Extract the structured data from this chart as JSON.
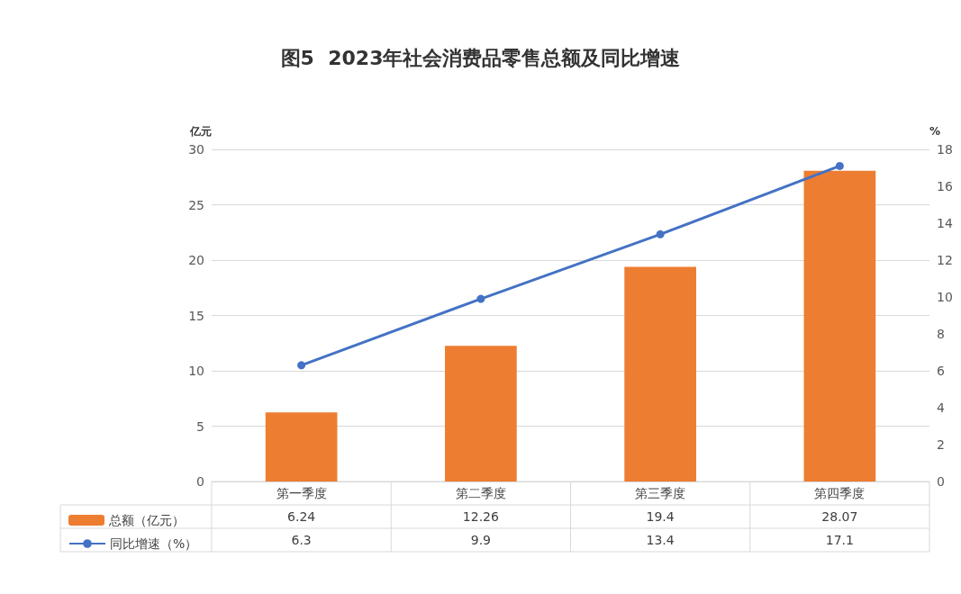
{
  "chart_data": {
    "type": "bar",
    "title": "图5  2023年社会消费品零售总额及同比增速",
    "ylabel": "亿元",
    "y2label": "%",
    "categories": [
      "第一季度",
      "第二季度",
      "第三季度",
      "第四季度"
    ],
    "series": [
      {
        "name": "总额（亿元）",
        "color": "#ed7d31",
        "values": [
          6.24,
          12.26,
          19.4,
          28.07
        ]
      },
      {
        "name": "同比增速（%）",
        "type": "line",
        "axis": "y2",
        "color": "#4472c4",
        "values": [
          6.3,
          9.9,
          13.4,
          17.1
        ]
      }
    ],
    "ylim": [
      0,
      30
    ],
    "yticks": [
      0,
      5,
      10,
      15,
      20,
      25,
      30
    ],
    "y2lim": [
      0,
      18
    ],
    "y2ticks": [
      0,
      2,
      4,
      6,
      8,
      10,
      12,
      14,
      16,
      18
    ],
    "grid": "y",
    "legend": "bottom",
    "marker": "circle",
    "line_style": "solid",
    "data_labels": true
  }
}
